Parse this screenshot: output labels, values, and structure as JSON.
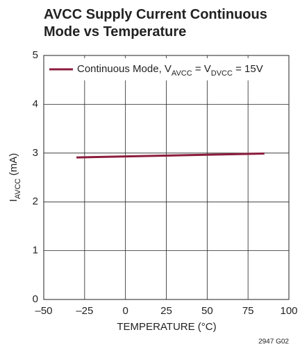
{
  "chart_data": {
    "type": "line",
    "title": [
      "AVCC Supply Current Continuous",
      "Mode vs Temperature"
    ],
    "xlabel": "TEMPERATURE (°C)",
    "ylabel": [
      "I",
      "AVCC",
      " (mA)"
    ],
    "note": "2947 G02",
    "x": [
      -30,
      85
    ],
    "series": [
      {
        "name": [
          "Continuous Mode, V",
          "AVCC",
          " = V",
          "DVCC",
          " = 15V"
        ],
        "color": "#8c1c3c",
        "values": [
          2.91,
          2.99
        ]
      }
    ],
    "xlim": [
      -50,
      100
    ],
    "xticks": [
      {
        "value": -50,
        "label": "–50"
      },
      {
        "value": -25,
        "label": "–25"
      },
      0,
      25,
      50,
      75,
      100
    ],
    "ylim": [
      0,
      5
    ],
    "yticks": [
      0,
      1,
      2,
      3,
      4,
      5
    ],
    "grid": true,
    "legend": "top"
  }
}
